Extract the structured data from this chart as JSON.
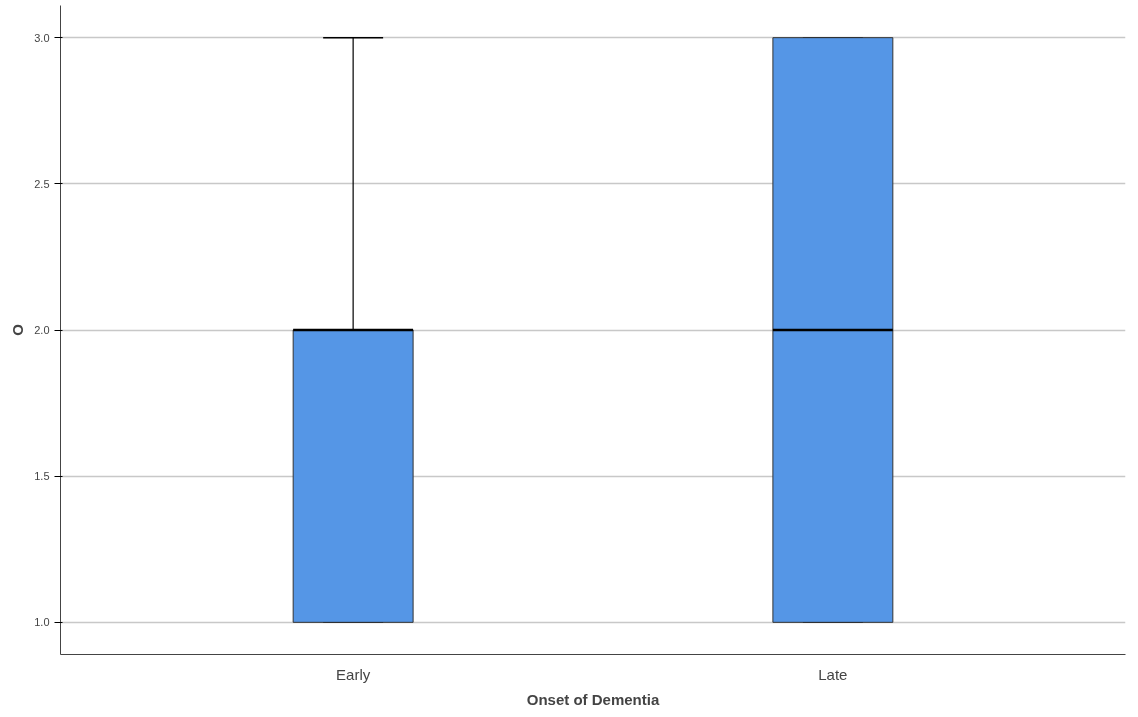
{
  "chart_data": {
    "type": "box",
    "xlabel": "Onset of Dementia",
    "ylabel": "O",
    "categories": [
      "Early",
      "Late"
    ],
    "boxes": [
      {
        "low": 1,
        "q1": 1,
        "median": 2,
        "q3": 2,
        "high": 3
      },
      {
        "low": 1,
        "q1": 1,
        "median": 2,
        "q3": 3,
        "high": 3
      }
    ],
    "color": "#5596e6",
    "ylim": [
      0.89,
      3.11
    ],
    "yticks": [
      {
        "value": 1,
        "label": "1.0"
      },
      {
        "value": 1.5,
        "label": "1.5"
      },
      {
        "value": 2,
        "label": "2.0"
      },
      {
        "value": 2.5,
        "label": "2.5"
      },
      {
        "value": 3,
        "label": "3.0"
      }
    ],
    "grid": "y"
  }
}
